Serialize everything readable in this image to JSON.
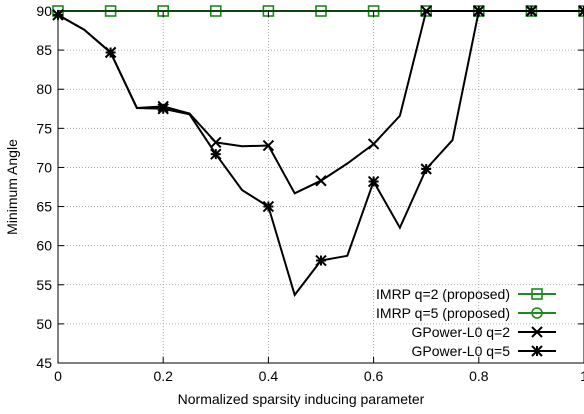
{
  "chart_data": {
    "type": "line",
    "xlabel": "Normalized sparsity inducing parameter",
    "ylabel": "Minimum Angle",
    "xlim": [
      0,
      1
    ],
    "ylim": [
      45,
      90
    ],
    "xticks": [
      0,
      0.2,
      0.4,
      0.6,
      0.8,
      1
    ],
    "xtick_labels": [
      "0",
      "0.2",
      "0.4",
      "0.6",
      "0.8",
      "1"
    ],
    "yticks": [
      45,
      50,
      55,
      60,
      65,
      70,
      75,
      80,
      85,
      90
    ],
    "ytick_labels": [
      "45",
      "50",
      "55",
      "60",
      "65",
      "70",
      "75",
      "80",
      "85",
      "90"
    ],
    "grid": true,
    "legend_position": "bottom-right",
    "series": [
      {
        "name": "IMRP q=2 (proposed)",
        "color": "#1a8a1a",
        "marker": "square",
        "x": [
          0,
          0.05,
          0.1,
          0.15,
          0.2,
          0.25,
          0.3,
          0.35,
          0.4,
          0.45,
          0.5,
          0.55,
          0.6,
          0.65,
          0.7,
          0.75,
          0.8,
          0.85,
          0.9,
          0.95,
          1
        ],
        "y": [
          90,
          90,
          90,
          90,
          90,
          90,
          90,
          90,
          90,
          90,
          90,
          90,
          90,
          90,
          90,
          90,
          90,
          90,
          90,
          90,
          90
        ],
        "marked_x": [
          0,
          0.1,
          0.2,
          0.3,
          0.4,
          0.5,
          0.6,
          0.7,
          0.8,
          0.9,
          1
        ]
      },
      {
        "name": "IMRP q=5 (proposed)",
        "color": "#1a8a1a",
        "marker": "circle",
        "x": [
          0,
          0.05,
          0.1,
          0.15,
          0.2,
          0.25,
          0.3,
          0.35,
          0.4,
          0.45,
          0.5,
          0.55,
          0.6,
          0.65,
          0.7,
          0.75,
          0.8,
          0.85,
          0.9,
          0.95,
          1
        ],
        "y": [
          90,
          90,
          90,
          90,
          90,
          90,
          90,
          90,
          90,
          90,
          90,
          90,
          90,
          90,
          90,
          90,
          90,
          90,
          90,
          90,
          90
        ],
        "marked_x": []
      },
      {
        "name": "GPower-L0 q=2",
        "color": "#000000",
        "marker": "x",
        "x": [
          0,
          0.05,
          0.1,
          0.15,
          0.2,
          0.25,
          0.3,
          0.35,
          0.4,
          0.45,
          0.5,
          0.55,
          0.6,
          0.65,
          0.7,
          0.75,
          0.8,
          0.85,
          0.9,
          0.95,
          1
        ],
        "y": [
          89.5,
          87.6,
          84.7,
          77.6,
          77.8,
          76.9,
          73.2,
          72.7,
          72.8,
          66.7,
          68.3,
          70.5,
          73.0,
          76.6,
          90,
          90,
          90,
          90,
          90,
          90,
          90
        ],
        "marked_x": [
          0,
          0.1,
          0.2,
          0.3,
          0.4,
          0.5,
          0.6,
          0.7,
          0.8,
          0.9,
          1
        ]
      },
      {
        "name": "GPower-L0 q=5",
        "color": "#000000",
        "marker": "asterisk",
        "x": [
          0,
          0.05,
          0.1,
          0.15,
          0.2,
          0.25,
          0.3,
          0.35,
          0.4,
          0.45,
          0.5,
          0.55,
          0.6,
          0.65,
          0.7,
          0.75,
          0.8,
          0.85,
          0.9,
          0.95,
          1
        ],
        "y": [
          89.5,
          87.6,
          84.7,
          77.6,
          77.5,
          76.8,
          71.7,
          67.1,
          65.0,
          53.7,
          58.1,
          58.7,
          68.2,
          62.3,
          69.8,
          73.5,
          90,
          90,
          90,
          90,
          90
        ],
        "marked_x": [
          0,
          0.1,
          0.2,
          0.3,
          0.4,
          0.5,
          0.6,
          0.7,
          0.8,
          0.9,
          1
        ]
      }
    ]
  }
}
